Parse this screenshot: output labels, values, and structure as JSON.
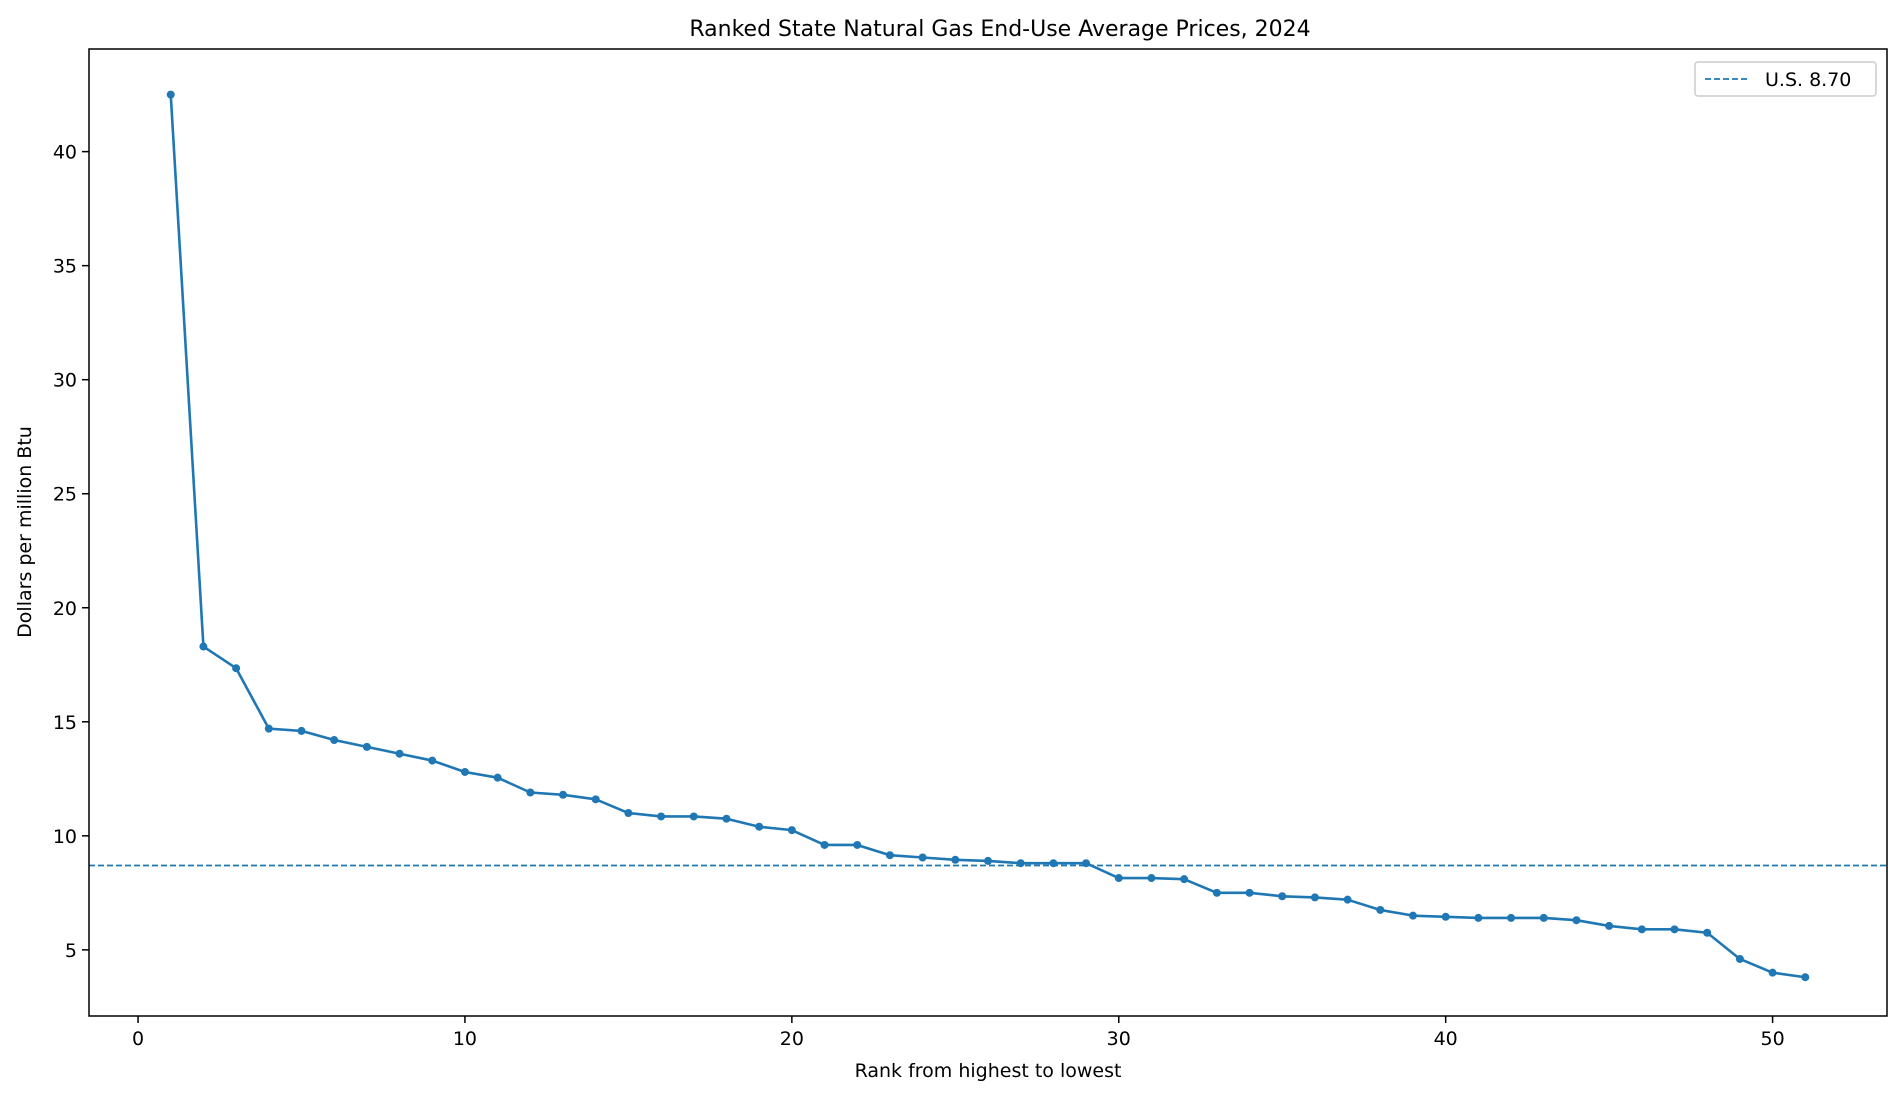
{
  "chart_data": {
    "type": "line",
    "title": "Ranked State Natural Gas End-Use Average Prices, 2024",
    "xlabel": "Rank from highest to lowest",
    "ylabel": "Dollars per million Btu",
    "xlim": [
      -1.5,
      53.5
    ],
    "ylim": [
      2.1,
      44.5
    ],
    "xticks": [
      0,
      10,
      20,
      30,
      40,
      50
    ],
    "yticks": [
      5,
      10,
      15,
      20,
      25,
      30,
      35,
      40
    ],
    "grid": false,
    "legend_position": "top-right",
    "series": [
      {
        "values": [
          42.5,
          18.3,
          17.35,
          14.7,
          14.6,
          14.2,
          13.9,
          13.6,
          13.3,
          12.8,
          12.55,
          11.9,
          11.8,
          11.6,
          11.0,
          10.85,
          10.85,
          10.75,
          10.4,
          10.25,
          9.6,
          9.6,
          9.15,
          9.05,
          8.95,
          8.9,
          8.8,
          8.8,
          8.8,
          8.15,
          8.15,
          8.1,
          7.5,
          7.5,
          7.35,
          7.3,
          7.2,
          6.75,
          6.5,
          6.45,
          6.4,
          6.4,
          6.4,
          6.3,
          6.05,
          5.9,
          5.9,
          5.75,
          4.6,
          4.0,
          3.8
        ],
        "color": "#1f77b4"
      }
    ],
    "x": [
      1,
      2,
      3,
      4,
      5,
      6,
      7,
      8,
      9,
      10,
      11,
      12,
      13,
      14,
      15,
      16,
      17,
      18,
      19,
      20,
      21,
      22,
      23,
      24,
      25,
      26,
      27,
      28,
      29,
      30,
      31,
      32,
      33,
      34,
      35,
      36,
      37,
      38,
      39,
      40,
      41,
      42,
      43,
      44,
      45,
      46,
      47,
      48,
      49,
      50,
      51
    ],
    "reference_line": {
      "label": "U.S. 8.70",
      "value": 8.7,
      "color": "#1f77b4",
      "style": "dashed"
    }
  }
}
